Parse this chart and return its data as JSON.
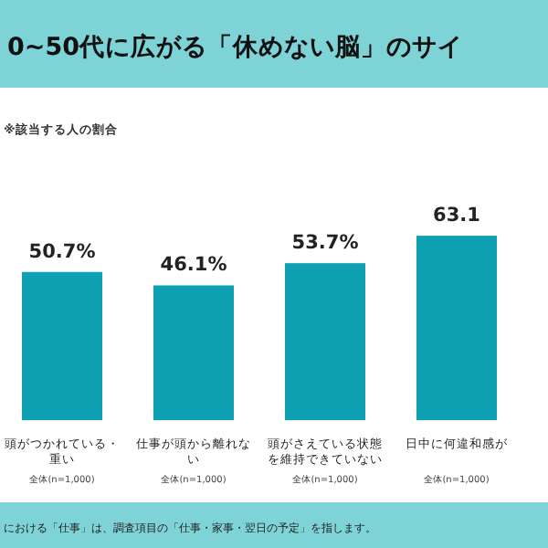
{
  "chart_data": {
    "type": "bar",
    "title": "0~50代に広がる「休めない脳」のサイ",
    "subtitle": "※該当する人の割合",
    "categories": [
      "頭がつかれている・重い",
      "仕事が頭から離れない",
      "頭がさえている状態を維持できていない",
      "日中に何違和感が"
    ],
    "values": [
      50.7,
      46.1,
      53.7,
      63.1
    ],
    "value_labels": [
      "50.7%",
      "46.1%",
      "53.7%",
      "63.1"
    ],
    "color": "#0ea1b3",
    "annotations": [
      "全体(n=1,000)",
      "全体(n=1,000)",
      "全体(n=1,000)",
      "全体(n=1,000)",
      "における「仕事」は、調査項目の「仕事・家事・翌日の予定」を指します。"
    ]
  }
}
